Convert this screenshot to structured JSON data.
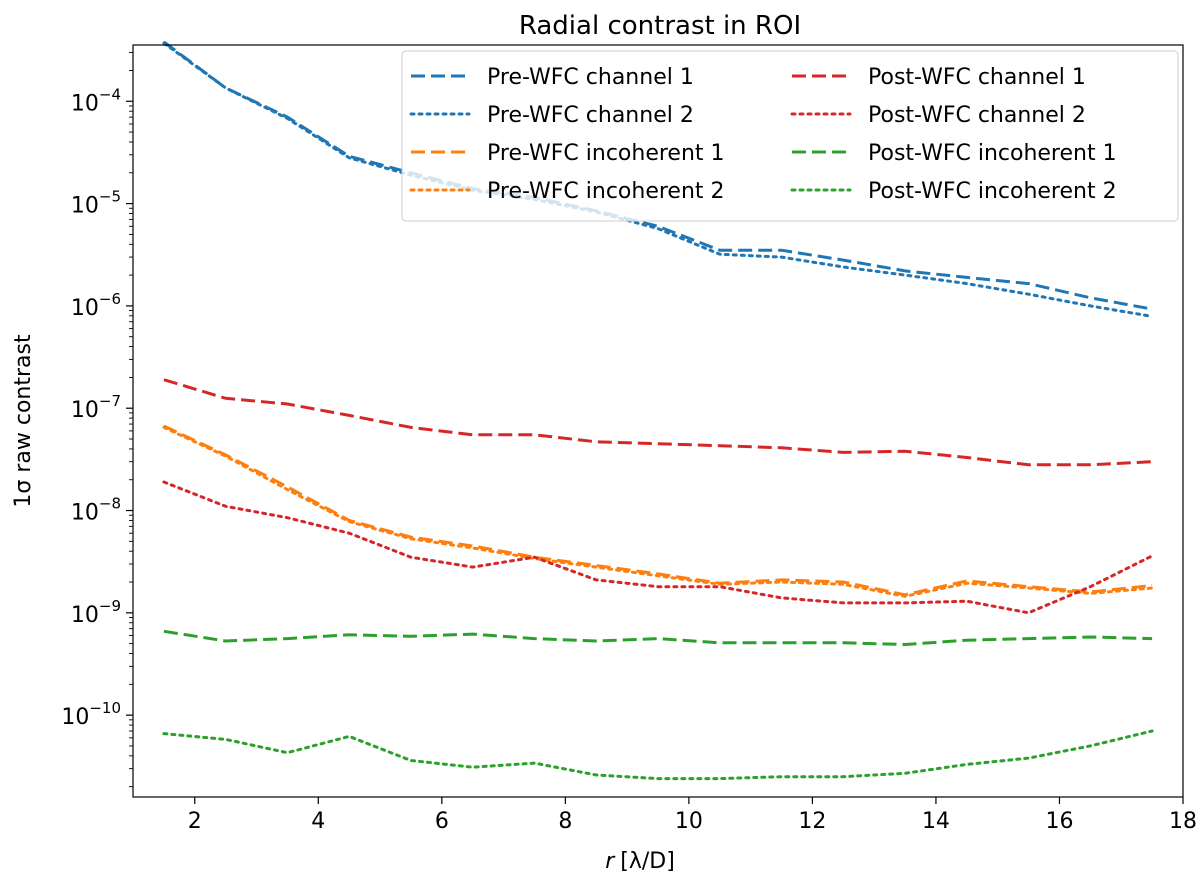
{
  "chart_data": {
    "type": "line",
    "title": "Radial contrast in ROI",
    "xlabel": "r [λ/D]",
    "xlabel_var": "r",
    "xlabel_unit": "[λ/D]",
    "ylabel": "1σ raw contrast",
    "yscale": "log",
    "xlim": [
      1.0,
      18.0
    ],
    "ylim_exp": [
      -10.8,
      -3.45
    ],
    "xticks": [
      2,
      4,
      6,
      8,
      10,
      12,
      14,
      16,
      18
    ],
    "yticks_exp": [
      -10,
      -9,
      -8,
      -7,
      -6,
      -5,
      -4
    ],
    "ytick_base": "10",
    "grid": false,
    "legend_position": "top-right",
    "x": [
      1.5,
      2.5,
      3.5,
      4.5,
      5.5,
      6.5,
      7.5,
      8.5,
      9.5,
      10.5,
      11.5,
      12.5,
      13.5,
      14.5,
      15.5,
      16.5,
      17.5
    ],
    "series": [
      {
        "name": "Pre-WFC channel 1",
        "color": "#1f77b4",
        "style": "dashed",
        "values": [
          0.00038,
          0.000135,
          7e-05,
          2.9e-05,
          2e-05,
          1.4e-05,
          1.15e-05,
          8.5e-06,
          6e-06,
          3.5e-06,
          3.5e-06,
          2.8e-06,
          2.2e-06,
          1.9e-06,
          1.65e-06,
          1.2e-06,
          9.3e-07
        ]
      },
      {
        "name": "Pre-WFC channel 2",
        "color": "#1f77b4",
        "style": "dotted",
        "values": [
          0.00037,
          0.000135,
          6.8e-05,
          2.8e-05,
          1.9e-05,
          1.35e-05,
          1.1e-05,
          8.3e-06,
          5.7e-06,
          3.2e-06,
          3e-06,
          2.4e-06,
          2e-06,
          1.65e-06,
          1.3e-06,
          1e-06,
          7.9e-07
        ]
      },
      {
        "name": "Pre-WFC incoherent 1",
        "color": "#ff7f0e",
        "style": "dashed",
        "values": [
          6.7e-08,
          3.5e-08,
          1.7e-08,
          8e-09,
          5.5e-09,
          4.5e-09,
          3.5e-09,
          2.9e-09,
          2.4e-09,
          1.95e-09,
          2.1e-09,
          2e-09,
          1.5e-09,
          2.05e-09,
          1.8e-09,
          1.6e-09,
          1.85e-09
        ]
      },
      {
        "name": "Pre-WFC incoherent 2",
        "color": "#ff7f0e",
        "style": "dotted",
        "values": [
          6.5e-08,
          3.4e-08,
          1.6e-08,
          7.8e-09,
          5.3e-09,
          4.3e-09,
          3.4e-09,
          2.8e-09,
          2.3e-09,
          1.9e-09,
          2e-09,
          1.9e-09,
          1.45e-09,
          1.95e-09,
          1.75e-09,
          1.55e-09,
          1.75e-09
        ]
      },
      {
        "name": "Post-WFC channel 1",
        "color": "#d62728",
        "style": "dashed",
        "values": [
          1.9e-07,
          1.25e-07,
          1.1e-07,
          8.5e-08,
          6.5e-08,
          5.5e-08,
          5.5e-08,
          4.7e-08,
          4.5e-08,
          4.3e-08,
          4.1e-08,
          3.7e-08,
          3.8e-08,
          3.3e-08,
          2.8e-08,
          2.8e-08,
          3e-08
        ]
      },
      {
        "name": "Post-WFC channel 2",
        "color": "#d62728",
        "style": "dotted",
        "values": [
          1.9e-08,
          1.1e-08,
          8.5e-09,
          6e-09,
          3.5e-09,
          2.8e-09,
          3.5e-09,
          2.1e-09,
          1.8e-09,
          1.8e-09,
          1.4e-09,
          1.25e-09,
          1.25e-09,
          1.3e-09,
          1e-09,
          1.8e-09,
          3.6e-09
        ]
      },
      {
        "name": "Post-WFC incoherent 1",
        "color": "#2ca02c",
        "style": "dashed",
        "values": [
          6.6e-10,
          5.3e-10,
          5.6e-10,
          6.1e-10,
          5.9e-10,
          6.2e-10,
          5.6e-10,
          5.3e-10,
          5.6e-10,
          5.1e-10,
          5.1e-10,
          5.1e-10,
          4.9e-10,
          5.4e-10,
          5.6e-10,
          5.8e-10,
          5.6e-10
        ]
      },
      {
        "name": "Post-WFC incoherent 2",
        "color": "#2ca02c",
        "style": "dotted",
        "values": [
          6.6e-11,
          5.8e-11,
          4.3e-11,
          6.2e-11,
          3.6e-11,
          3.1e-11,
          3.4e-11,
          2.6e-11,
          2.4e-11,
          2.4e-11,
          2.5e-11,
          2.5e-11,
          2.7e-11,
          3.3e-11,
          3.8e-11,
          5e-11,
          7e-11
        ]
      }
    ]
  }
}
